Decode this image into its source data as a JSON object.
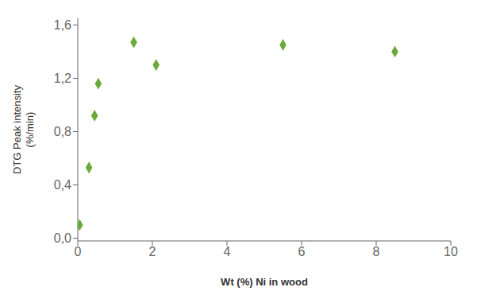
{
  "chart_data": {
    "type": "scatter",
    "xlabel": "Wt (%) Ni in wood",
    "ylabel": "DTG Peak intensity\n(%/min)",
    "x": [
      0.05,
      0.3,
      0.45,
      0.55,
      1.5,
      2.1,
      5.5,
      8.5
    ],
    "values": [
      0.1,
      0.53,
      0.92,
      1.16,
      1.47,
      1.3,
      1.45,
      1.4
    ],
    "color": "#6aaa3a",
    "marker": "diamond",
    "xlim": [
      0,
      10
    ],
    "xticks": [
      0,
      2,
      4,
      6,
      8,
      10
    ],
    "ylim": [
      -0.02,
      1.65
    ],
    "yticks": [
      {
        "value": 0.0,
        "label": "0,0"
      },
      {
        "value": 0.4,
        "label": "0,4"
      },
      {
        "value": 0.8,
        "label": "0,8"
      },
      {
        "value": 1.2,
        "label": "1,2"
      },
      {
        "value": 1.6,
        "label": "1,6"
      }
    ],
    "grid": false
  }
}
